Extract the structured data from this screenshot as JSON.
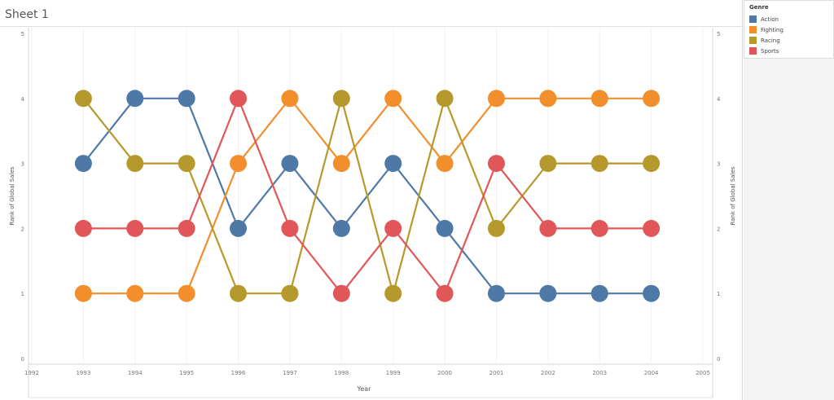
{
  "sheet_title": "Sheet 1",
  "legend": {
    "title": "Genre",
    "items": [
      {
        "label": "Action",
        "color": "#4e79a7"
      },
      {
        "label": "Fighting",
        "color": "#f28e2b"
      },
      {
        "label": "Racing",
        "color": "#b6992d"
      },
      {
        "label": "Sports",
        "color": "#e15759"
      }
    ]
  },
  "chart_data": {
    "type": "line",
    "xlabel": "Year",
    "ylabel": "Rank of Global Sales",
    "ylabel_right": "Rank of Global Sales",
    "x_ticks": [
      1992,
      1993,
      1994,
      1995,
      1996,
      1997,
      1998,
      1999,
      2000,
      2001,
      2002,
      2003,
      2004,
      2005
    ],
    "y_ticks": [
      0,
      1,
      2,
      3,
      4,
      5
    ],
    "xlim": [
      1992,
      2005
    ],
    "ylim": [
      0,
      5
    ],
    "x": [
      1993,
      1994,
      1995,
      1996,
      1997,
      1998,
      1999,
      2000,
      2001,
      2002,
      2003,
      2004
    ],
    "series": [
      {
        "name": "Action",
        "color": "#4e79a7",
        "values": [
          3,
          4,
          4,
          2,
          3,
          2,
          3,
          2,
          1,
          1,
          1,
          1
        ]
      },
      {
        "name": "Fighting",
        "color": "#f28e2b",
        "values": [
          1,
          1,
          1,
          3,
          4,
          3,
          4,
          3,
          4,
          4,
          4,
          4
        ]
      },
      {
        "name": "Racing",
        "color": "#b6992d",
        "values": [
          4,
          3,
          3,
          1,
          1,
          4,
          1,
          4,
          2,
          3,
          3,
          3
        ]
      },
      {
        "name": "Sports",
        "color": "#e15759",
        "values": [
          2,
          2,
          2,
          4,
          2,
          1,
          2,
          1,
          3,
          2,
          2,
          2
        ]
      }
    ],
    "grid": "vertical",
    "legend_position": "right"
  }
}
